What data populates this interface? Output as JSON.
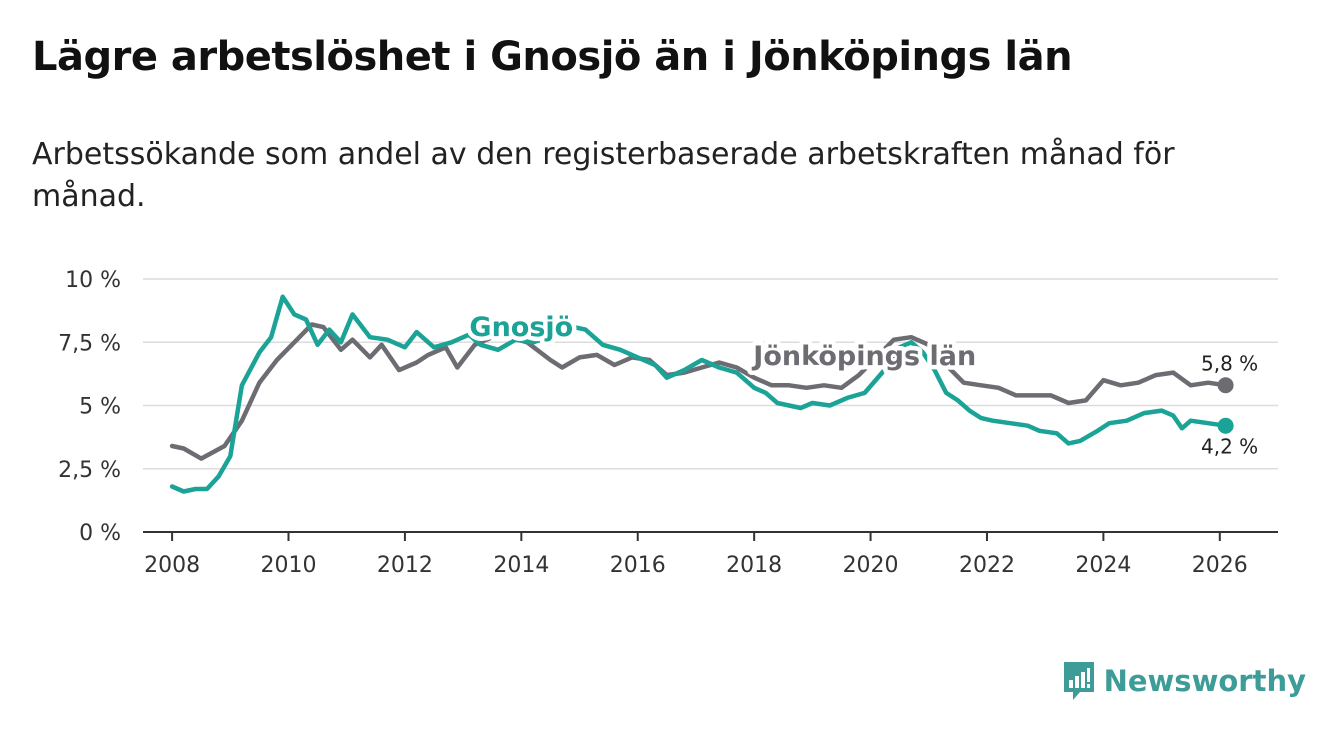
{
  "title": "Lägre arbetslöshet i Gnosjö än i Jönköpings län",
  "subtitle": "Arbetssökande som andel av den registerbaserade arbetskraften månad för månad.",
  "brand": {
    "name": "Newsworthy",
    "icon": "newsworthy-logo-icon",
    "color": "#3d9c97"
  },
  "chart_data": {
    "type": "line",
    "title": "Lägre arbetslöshet i Gnosjö än i Jönköpings län",
    "xlabel": "",
    "ylabel": "",
    "xlim": [
      2007.5,
      2027.0
    ],
    "ylim": [
      0,
      10
    ],
    "x_ticks": [
      2008,
      2010,
      2012,
      2014,
      2016,
      2018,
      2020,
      2022,
      2024,
      2026
    ],
    "x_tick_labels": [
      "2008",
      "2010",
      "2012",
      "2014",
      "2016",
      "2018",
      "2020",
      "2022",
      "2024",
      "2026"
    ],
    "y_ticks": [
      0,
      2.5,
      5,
      7.5,
      10
    ],
    "y_tick_labels": [
      "0 %",
      "2,5 %",
      "5 %",
      "7,5 %",
      "10 %"
    ],
    "grid": true,
    "series": [
      {
        "name": "Jönköpings län",
        "color": "#6e6c73",
        "end_label": "5,8 %",
        "points": [
          [
            2008.0,
            3.4
          ],
          [
            2008.2,
            3.3
          ],
          [
            2008.5,
            2.9
          ],
          [
            2008.9,
            3.4
          ],
          [
            2009.2,
            4.4
          ],
          [
            2009.5,
            5.9
          ],
          [
            2009.8,
            6.8
          ],
          [
            2010.1,
            7.5
          ],
          [
            2010.4,
            8.2
          ],
          [
            2010.6,
            8.1
          ],
          [
            2010.9,
            7.2
          ],
          [
            2011.1,
            7.6
          ],
          [
            2011.4,
            6.9
          ],
          [
            2011.6,
            7.4
          ],
          [
            2011.9,
            6.4
          ],
          [
            2012.2,
            6.7
          ],
          [
            2012.4,
            7.0
          ],
          [
            2012.7,
            7.3
          ],
          [
            2012.9,
            6.5
          ],
          [
            2013.2,
            7.4
          ],
          [
            2013.5,
            7.7
          ],
          [
            2013.8,
            7.7
          ],
          [
            2014.1,
            7.5
          ],
          [
            2014.5,
            6.8
          ],
          [
            2014.7,
            6.5
          ],
          [
            2015.0,
            6.9
          ],
          [
            2015.3,
            7.0
          ],
          [
            2015.6,
            6.6
          ],
          [
            2015.9,
            6.9
          ],
          [
            2016.2,
            6.8
          ],
          [
            2016.5,
            6.2
          ],
          [
            2016.8,
            6.3
          ],
          [
            2017.1,
            6.5
          ],
          [
            2017.4,
            6.7
          ],
          [
            2017.7,
            6.5
          ],
          [
            2018.0,
            6.1
          ],
          [
            2018.3,
            5.8
          ],
          [
            2018.6,
            5.8
          ],
          [
            2018.9,
            5.7
          ],
          [
            2019.2,
            5.8
          ],
          [
            2019.5,
            5.7
          ],
          [
            2019.8,
            6.2
          ],
          [
            2020.1,
            6.9
          ],
          [
            2020.4,
            7.6
          ],
          [
            2020.7,
            7.7
          ],
          [
            2021.0,
            7.4
          ],
          [
            2021.3,
            6.6
          ],
          [
            2021.6,
            5.9
          ],
          [
            2021.9,
            5.8
          ],
          [
            2022.2,
            5.7
          ],
          [
            2022.5,
            5.4
          ],
          [
            2022.8,
            5.4
          ],
          [
            2023.1,
            5.4
          ],
          [
            2023.4,
            5.1
          ],
          [
            2023.7,
            5.2
          ],
          [
            2024.0,
            6.0
          ],
          [
            2024.3,
            5.8
          ],
          [
            2024.6,
            5.9
          ],
          [
            2024.9,
            6.2
          ],
          [
            2025.2,
            6.3
          ],
          [
            2025.5,
            5.8
          ],
          [
            2025.8,
            5.9
          ],
          [
            2026.1,
            5.8
          ]
        ]
      },
      {
        "name": "Gnosjö",
        "color": "#1aa396",
        "end_label": "4,2 %",
        "points": [
          [
            2008.0,
            1.8
          ],
          [
            2008.2,
            1.6
          ],
          [
            2008.4,
            1.7
          ],
          [
            2008.6,
            1.7
          ],
          [
            2008.8,
            2.2
          ],
          [
            2009.0,
            3.0
          ],
          [
            2009.2,
            5.8
          ],
          [
            2009.5,
            7.1
          ],
          [
            2009.7,
            7.7
          ],
          [
            2009.9,
            9.3
          ],
          [
            2010.1,
            8.6
          ],
          [
            2010.3,
            8.4
          ],
          [
            2010.5,
            7.4
          ],
          [
            2010.7,
            8.0
          ],
          [
            2010.9,
            7.5
          ],
          [
            2011.1,
            8.6
          ],
          [
            2011.4,
            7.7
          ],
          [
            2011.7,
            7.6
          ],
          [
            2012.0,
            7.3
          ],
          [
            2012.2,
            7.9
          ],
          [
            2012.5,
            7.3
          ],
          [
            2012.8,
            7.5
          ],
          [
            2013.1,
            7.8
          ],
          [
            2013.3,
            7.4
          ],
          [
            2013.6,
            7.2
          ],
          [
            2013.9,
            7.6
          ],
          [
            2014.2,
            7.5
          ],
          [
            2014.6,
            7.8
          ],
          [
            2014.9,
            8.1
          ],
          [
            2015.1,
            8.0
          ],
          [
            2015.4,
            7.4
          ],
          [
            2015.7,
            7.2
          ],
          [
            2016.0,
            6.9
          ],
          [
            2016.3,
            6.6
          ],
          [
            2016.5,
            6.1
          ],
          [
            2016.8,
            6.4
          ],
          [
            2017.1,
            6.8
          ],
          [
            2017.4,
            6.5
          ],
          [
            2017.7,
            6.3
          ],
          [
            2018.0,
            5.7
          ],
          [
            2018.2,
            5.5
          ],
          [
            2018.4,
            5.1
          ],
          [
            2018.6,
            5.0
          ],
          [
            2018.8,
            4.9
          ],
          [
            2019.0,
            5.1
          ],
          [
            2019.3,
            5.0
          ],
          [
            2019.6,
            5.3
          ],
          [
            2019.9,
            5.5
          ],
          [
            2020.2,
            6.3
          ],
          [
            2020.5,
            7.3
          ],
          [
            2020.7,
            7.5
          ],
          [
            2020.9,
            7.1
          ],
          [
            2021.1,
            6.4
          ],
          [
            2021.3,
            5.5
          ],
          [
            2021.5,
            5.2
          ],
          [
            2021.7,
            4.8
          ],
          [
            2021.9,
            4.5
          ],
          [
            2022.1,
            4.4
          ],
          [
            2022.4,
            4.3
          ],
          [
            2022.7,
            4.2
          ],
          [
            2022.9,
            4.0
          ],
          [
            2023.2,
            3.9
          ],
          [
            2023.4,
            3.5
          ],
          [
            2023.6,
            3.6
          ],
          [
            2023.9,
            4.0
          ],
          [
            2024.1,
            4.3
          ],
          [
            2024.4,
            4.4
          ],
          [
            2024.7,
            4.7
          ],
          [
            2025.0,
            4.8
          ],
          [
            2025.2,
            4.6
          ],
          [
            2025.35,
            4.1
          ],
          [
            2025.5,
            4.4
          ],
          [
            2025.8,
            4.3
          ],
          [
            2026.1,
            4.2
          ]
        ]
      }
    ],
    "annotations": [
      {
        "series": "Gnosjö",
        "text": "Gnosjö",
        "at": [
          2014.0,
          7.75
        ]
      },
      {
        "series": "Jönköpings län",
        "text": "Jönköpings län",
        "at": [
          2019.9,
          6.6
        ]
      }
    ]
  }
}
